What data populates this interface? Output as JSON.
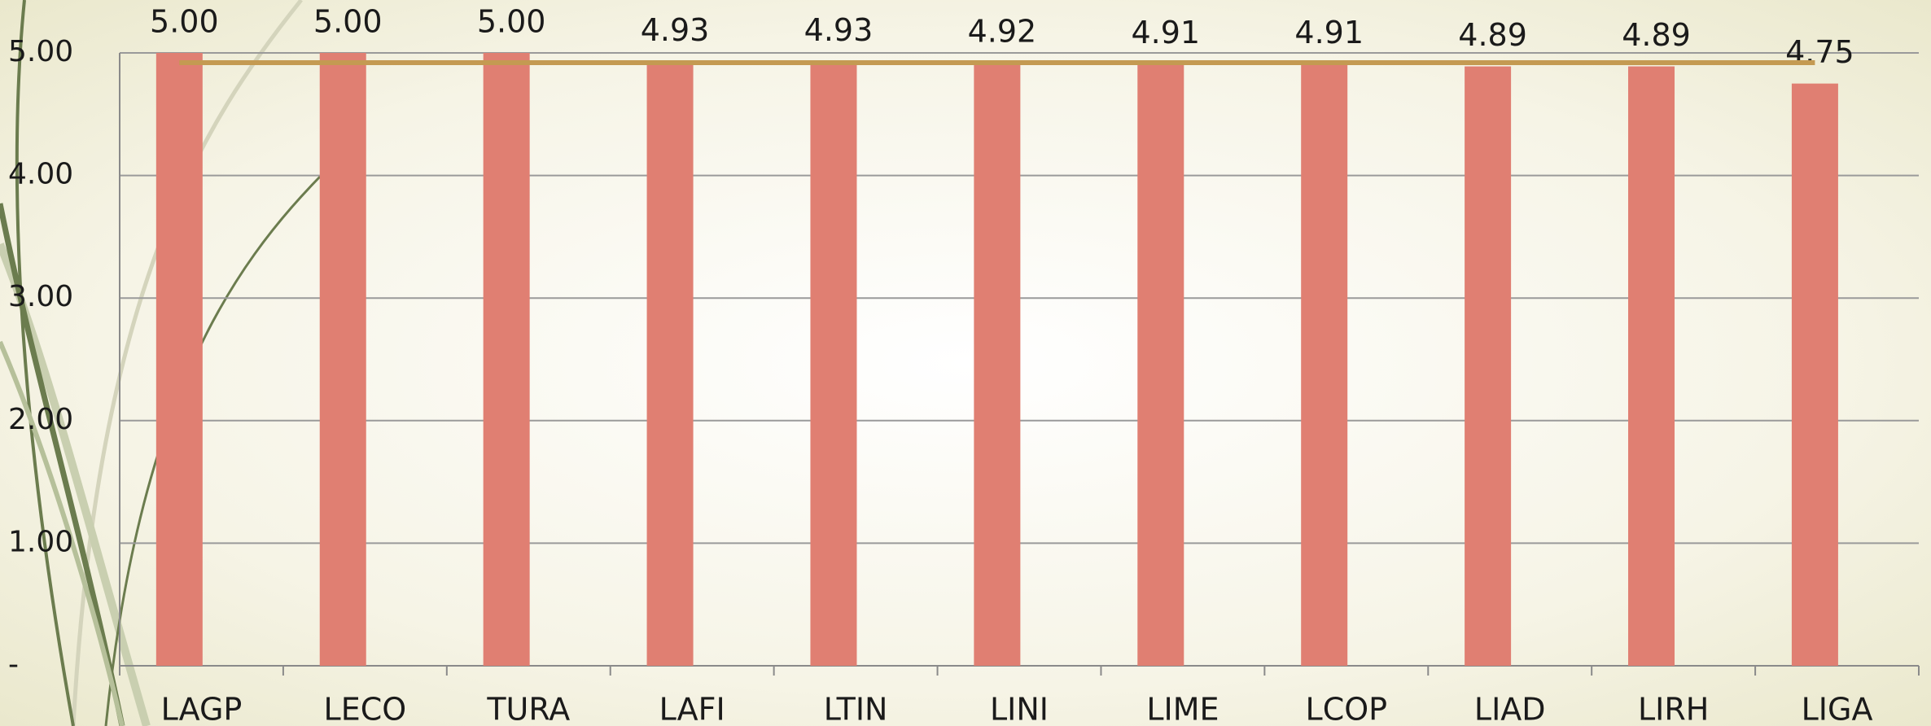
{
  "chart_data": {
    "type": "bar",
    "categories": [
      "LAGP",
      "LECO",
      "TURA",
      "LAFI",
      "LTIN",
      "LINI",
      "LIME",
      "LCOP",
      "LIAD",
      "LIRH",
      "LIGA"
    ],
    "series": [
      {
        "type": "bar",
        "color": "#e07f72",
        "values": [
          5.0,
          5.0,
          5.0,
          4.93,
          4.93,
          4.92,
          4.91,
          4.91,
          4.89,
          4.89,
          4.75
        ],
        "value_labels": [
          "5.00",
          "5.00",
          "5.00",
          "4.93",
          "4.93",
          "4.92",
          "4.91",
          "4.91",
          "4.89",
          "4.89",
          "4.75"
        ]
      },
      {
        "type": "line",
        "color": "#c49a52",
        "values": [
          4.92,
          4.92,
          4.92,
          4.92,
          4.92,
          4.92,
          4.92,
          4.92,
          4.92,
          4.92,
          4.92
        ]
      }
    ],
    "ylim": [
      0,
      5
    ],
    "yticks": [
      {
        "value": 0,
        "label": "-"
      },
      {
        "value": 1,
        "label": "1.00"
      },
      {
        "value": 2,
        "label": "2.00"
      },
      {
        "value": 3,
        "label": "3.00"
      },
      {
        "value": 4,
        "label": "4.00"
      },
      {
        "value": 5,
        "label": "5.00"
      }
    ],
    "grid": true
  }
}
